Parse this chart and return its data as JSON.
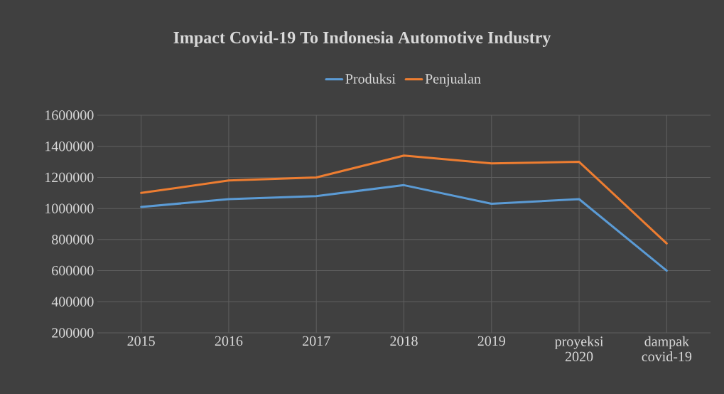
{
  "chart_data": {
    "type": "line",
    "title": "Impact Covid-19 To Indonesia Automotive Industry",
    "categories": [
      "2015",
      "2016",
      "2017",
      "2018",
      "2019",
      "proyeksi 2020",
      "dampak covid-19"
    ],
    "series": [
      {
        "name": "Produksi",
        "color": "#5b9bd5",
        "values": [
          1010000,
          1060000,
          1080000,
          1150000,
          1030000,
          1060000,
          600000
        ]
      },
      {
        "name": "Penjualan",
        "color": "#ed7d31",
        "values": [
          1100000,
          1180000,
          1200000,
          1340000,
          1290000,
          1300000,
          775000
        ]
      }
    ],
    "ylim": [
      200000,
      1600000
    ],
    "yticks": [
      200000,
      400000,
      600000,
      800000,
      1000000,
      1200000,
      1400000,
      1600000
    ],
    "grid": true,
    "legend": "top",
    "marker": "none"
  }
}
